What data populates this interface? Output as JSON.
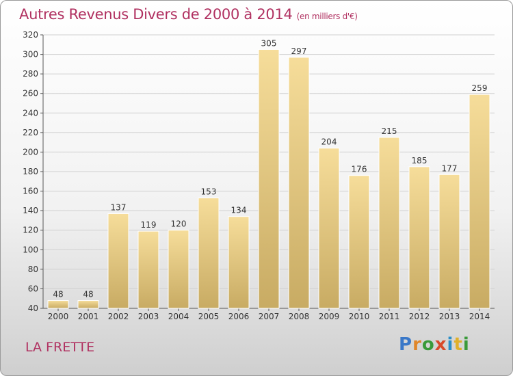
{
  "header": {
    "title": "Autres Revenus Divers de 2000 à 2014",
    "unit": "(en milliers d'€)"
  },
  "footer": {
    "place": "LA FRETTE",
    "logo": "Proxiti"
  },
  "colors": {
    "title": "#b03060",
    "bar_light": "#f6dd9a",
    "bar_dark": "#c8ab63"
  },
  "chart_data": {
    "type": "bar",
    "title": "Autres Revenus Divers de 2000 à 2014",
    "subtitle": "(en milliers d'€)",
    "categories": [
      "2000",
      "2001",
      "2002",
      "2003",
      "2004",
      "2005",
      "2006",
      "2007",
      "2008",
      "2009",
      "2010",
      "2011",
      "2012",
      "2013",
      "2014"
    ],
    "values": [
      48,
      48,
      137,
      119,
      120,
      153,
      134,
      305,
      297,
      204,
      176,
      215,
      185,
      177,
      259
    ],
    "ylim": [
      40,
      320
    ],
    "yticks": [
      40,
      60,
      80,
      100,
      120,
      140,
      160,
      180,
      200,
      220,
      240,
      260,
      280,
      300,
      320
    ],
    "grid": true
  }
}
